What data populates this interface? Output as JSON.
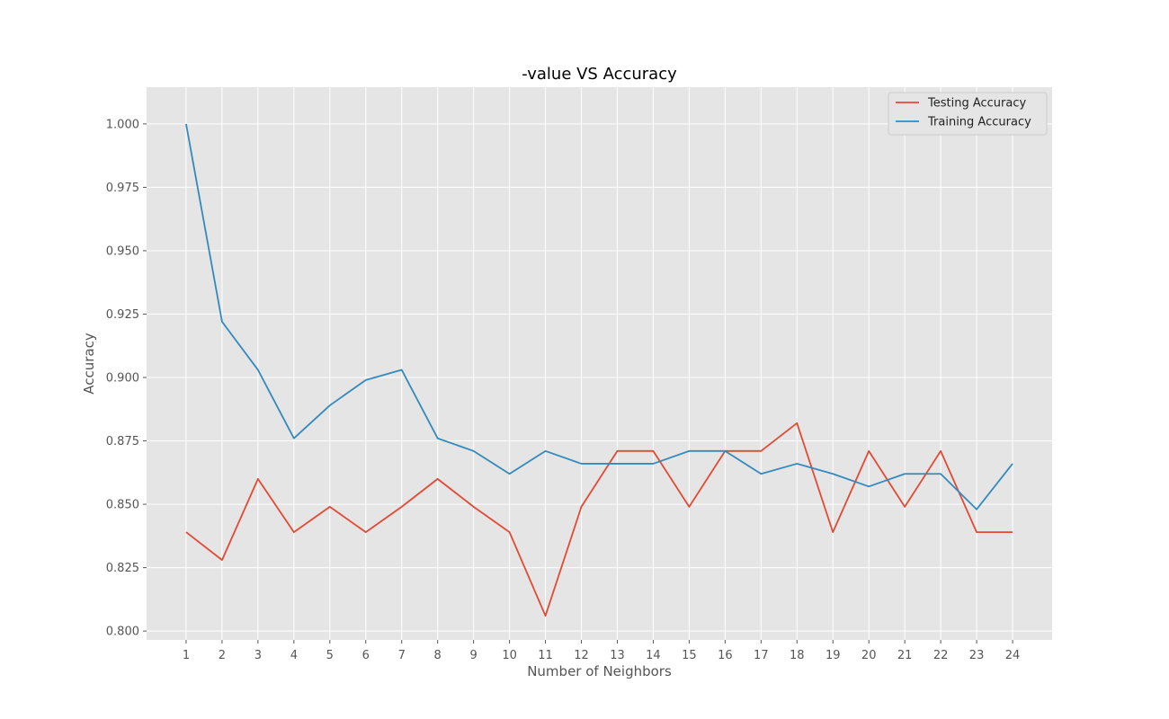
{
  "chart_data": {
    "type": "line",
    "title": "-value VS Accuracy",
    "xlabel": "Number of Neighbors",
    "ylabel": "Accuracy",
    "x": [
      1,
      2,
      3,
      4,
      5,
      6,
      7,
      8,
      9,
      10,
      11,
      12,
      13,
      14,
      15,
      16,
      17,
      18,
      19,
      20,
      21,
      22,
      23,
      24
    ],
    "xlim": [
      -0.1,
      25.1
    ],
    "ylim": [
      0.7965,
      1.0145
    ],
    "yticks": [
      "0.800",
      "0.825",
      "0.850",
      "0.875",
      "0.900",
      "0.925",
      "0.950",
      "0.975",
      "1.000"
    ],
    "grid": true,
    "legend_position": "top-right",
    "series": [
      {
        "name": "Testing Accuracy",
        "color": "#E24A33",
        "values": [
          0.839,
          0.828,
          0.86,
          0.839,
          0.849,
          0.839,
          0.849,
          0.86,
          0.849,
          0.839,
          0.806,
          0.849,
          0.871,
          0.871,
          0.849,
          0.871,
          0.871,
          0.882,
          0.839,
          0.871,
          0.849,
          0.871,
          0.839,
          0.839
        ]
      },
      {
        "name": "Training Accuracy",
        "color": "#348ABD",
        "values": [
          1.0,
          0.922,
          0.903,
          0.876,
          0.889,
          0.899,
          0.903,
          0.876,
          0.871,
          0.862,
          0.871,
          0.866,
          0.866,
          0.866,
          0.871,
          0.871,
          0.862,
          0.866,
          0.862,
          0.857,
          0.862,
          0.862,
          0.848,
          0.866
        ]
      }
    ],
    "background_color": "#E5E5E5",
    "grid_color": "#FFFFFF"
  }
}
